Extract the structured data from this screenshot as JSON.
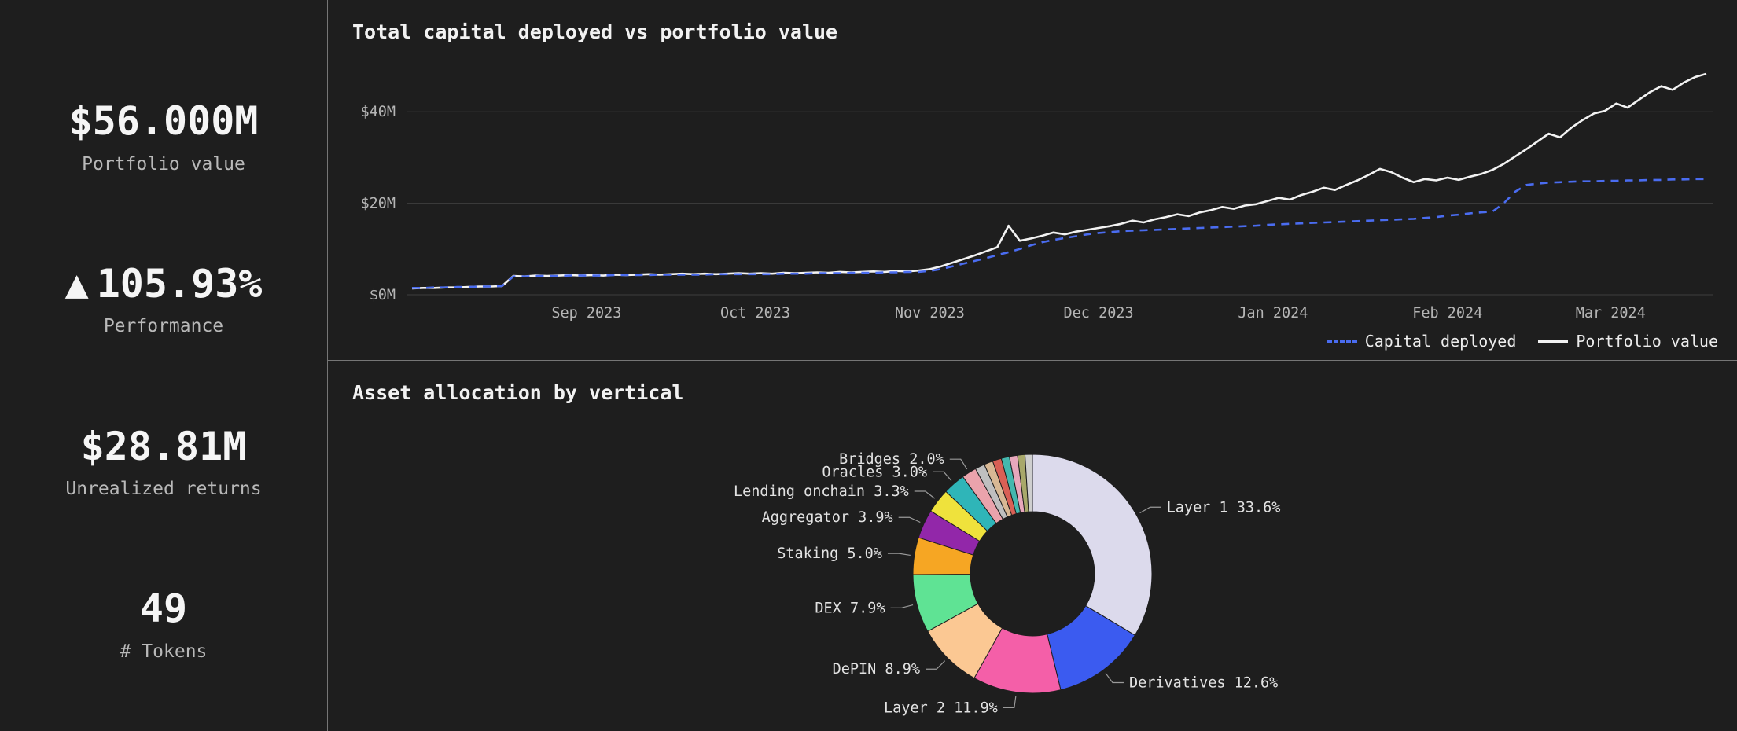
{
  "colors": {
    "background": "#1e1e1e",
    "panel_border": "#767676",
    "grid_line": "#3e3e3e",
    "axis_text": "#b5b5b5",
    "label_text": "#e2e2e2",
    "leader_line": "#9a9a9a",
    "capital_deployed": "#4a6cf0",
    "portfolio_value": "#f2f2f2"
  },
  "sidebar": {
    "kpis": [
      {
        "value": "$56.000M",
        "label": "Portfolio value"
      },
      {
        "arrow": "▲",
        "value": "105.93%",
        "label": "Performance"
      },
      {
        "value": "$28.81M",
        "label": "Unrealized returns"
      },
      {
        "value": "49",
        "label": "# Tokens"
      }
    ]
  },
  "chart_data": [
    {
      "type": "line",
      "title": "Total capital deployed vs portfolio value",
      "xlabel": "",
      "ylabel": "",
      "ylim": [
        0,
        52
      ],
      "grid": true,
      "legend_position": "bottom-right",
      "y_ticks": [
        0,
        20,
        40
      ],
      "y_tick_labels": [
        "$0M",
        "$20M",
        "$40M"
      ],
      "x_tick_labels": [
        "Sep 2023",
        "Oct 2023",
        "Nov 2023",
        "Dec 2023",
        "Jan 2024",
        "Feb 2024",
        "Mar 2024"
      ],
      "x_tick_indices": [
        15.5,
        30.5,
        46,
        61,
        76.5,
        92,
        106.5
      ],
      "series": [
        {
          "name": "Capital deployed",
          "style": "dashed",
          "color": "#4a6cf0",
          "values": [
            1.5,
            1.5,
            1.6,
            1.6,
            1.7,
            1.7,
            1.8,
            1.8,
            1.9,
            4.0,
            4.0,
            4.1,
            4.1,
            4.1,
            4.2,
            4.2,
            4.2,
            4.2,
            4.3,
            4.3,
            4.3,
            4.3,
            4.4,
            4.4,
            4.4,
            4.4,
            4.4,
            4.5,
            4.5,
            4.5,
            4.5,
            4.5,
            4.5,
            4.6,
            4.6,
            4.6,
            4.7,
            4.7,
            4.7,
            4.8,
            4.8,
            4.8,
            4.9,
            4.9,
            5.0,
            5.0,
            5.2,
            5.6,
            6.2,
            6.8,
            7.4,
            8.0,
            8.7,
            9.3,
            10.0,
            10.8,
            11.5,
            12.0,
            12.4,
            12.8,
            13.2,
            13.5,
            13.7,
            13.9,
            14.0,
            14.1,
            14.2,
            14.3,
            14.4,
            14.5,
            14.6,
            14.7,
            14.8,
            14.9,
            15.0,
            15.1,
            15.3,
            15.4,
            15.5,
            15.6,
            15.7,
            15.8,
            15.9,
            16.0,
            16.1,
            16.2,
            16.3,
            16.4,
            16.5,
            16.6,
            16.8,
            17.0,
            17.3,
            17.5,
            17.8,
            18.0,
            18.2,
            20.0,
            22.5,
            24.0,
            24.3,
            24.5,
            24.6,
            24.7,
            24.8,
            24.8,
            24.9,
            24.9,
            25.0,
            25.0,
            25.1,
            25.1,
            25.2,
            25.2,
            25.3,
            25.3
          ]
        },
        {
          "name": "Portfolio value",
          "style": "solid",
          "color": "#f2f2f2",
          "values": [
            1.4,
            1.5,
            1.5,
            1.6,
            1.6,
            1.7,
            1.8,
            1.8,
            1.9,
            4.1,
            4.0,
            4.2,
            4.1,
            4.2,
            4.3,
            4.2,
            4.3,
            4.2,
            4.4,
            4.3,
            4.4,
            4.5,
            4.4,
            4.5,
            4.6,
            4.5,
            4.6,
            4.5,
            4.6,
            4.7,
            4.6,
            4.7,
            4.6,
            4.8,
            4.7,
            4.8,
            4.9,
            4.8,
            5.0,
            4.9,
            5.0,
            5.1,
            5.0,
            5.2,
            5.1,
            5.3,
            5.6,
            6.2,
            7.0,
            7.8,
            8.6,
            9.5,
            10.4,
            15.1,
            11.8,
            12.3,
            12.9,
            13.6,
            13.2,
            13.8,
            14.2,
            14.6,
            15.0,
            15.5,
            16.2,
            15.8,
            16.5,
            17.0,
            17.6,
            17.2,
            18.0,
            18.5,
            19.2,
            18.8,
            19.5,
            19.8,
            20.5,
            21.2,
            20.8,
            21.8,
            22.5,
            23.4,
            22.9,
            24.0,
            25.0,
            26.2,
            27.5,
            26.8,
            25.6,
            24.6,
            25.3,
            25.0,
            25.6,
            25.1,
            25.8,
            26.4,
            27.3,
            28.6,
            30.2,
            31.8,
            33.5,
            35.2,
            34.4,
            36.5,
            38.2,
            39.6,
            40.2,
            41.8,
            40.9,
            42.6,
            44.3,
            45.6,
            44.8,
            46.4,
            47.6,
            48.3
          ]
        }
      ]
    },
    {
      "type": "pie",
      "donut": true,
      "title": "Asset allocation by vertical",
      "slices": [
        {
          "label": "Layer 1",
          "pct": 33.6,
          "color": "#dcdaec",
          "display": "Layer 1 33.6%"
        },
        {
          "label": "Derivatives",
          "pct": 12.6,
          "color": "#3b5bf0",
          "display": "Derivatives 12.6%"
        },
        {
          "label": "Layer 2",
          "pct": 11.9,
          "color": "#f45fa8",
          "display": "Layer 2 11.9%"
        },
        {
          "label": "DePIN",
          "pct": 8.9,
          "color": "#fbc893",
          "display": "DePIN 8.9%"
        },
        {
          "label": "DEX",
          "pct": 7.9,
          "color": "#5fe394",
          "display": "DEX 7.9%"
        },
        {
          "label": "Staking",
          "pct": 5.0,
          "color": "#f6a623",
          "display": "Staking 5.0%"
        },
        {
          "label": "Aggregator",
          "pct": 3.9,
          "color": "#9227a9",
          "display": "Aggregator 3.9%"
        },
        {
          "label": "Lending onchain",
          "pct": 3.3,
          "color": "#efe23c",
          "display": "Lending onchain 3.3%"
        },
        {
          "label": "Oracles",
          "pct": 3.0,
          "color": "#2fb5b8",
          "display": "Oracles 3.0%"
        },
        {
          "label": "Bridges",
          "pct": 2.0,
          "color": "#eaa3ac",
          "display": "Bridges 2.0%"
        },
        {
          "label": "",
          "pct": 1.3,
          "color": "#bfbfbf",
          "display": ""
        },
        {
          "label": "",
          "pct": 1.2,
          "color": "#d8b894",
          "display": ""
        },
        {
          "label": "",
          "pct": 1.2,
          "color": "#d96055",
          "display": ""
        },
        {
          "label": "",
          "pct": 1.1,
          "color": "#44b8ae",
          "display": ""
        },
        {
          "label": "",
          "pct": 1.1,
          "color": "#e8a8bc",
          "display": ""
        },
        {
          "label": "",
          "pct": 1.0,
          "color": "#a8a86a",
          "display": ""
        },
        {
          "label": "",
          "pct": 1.0,
          "color": "#cfcfcf",
          "display": ""
        }
      ]
    }
  ]
}
